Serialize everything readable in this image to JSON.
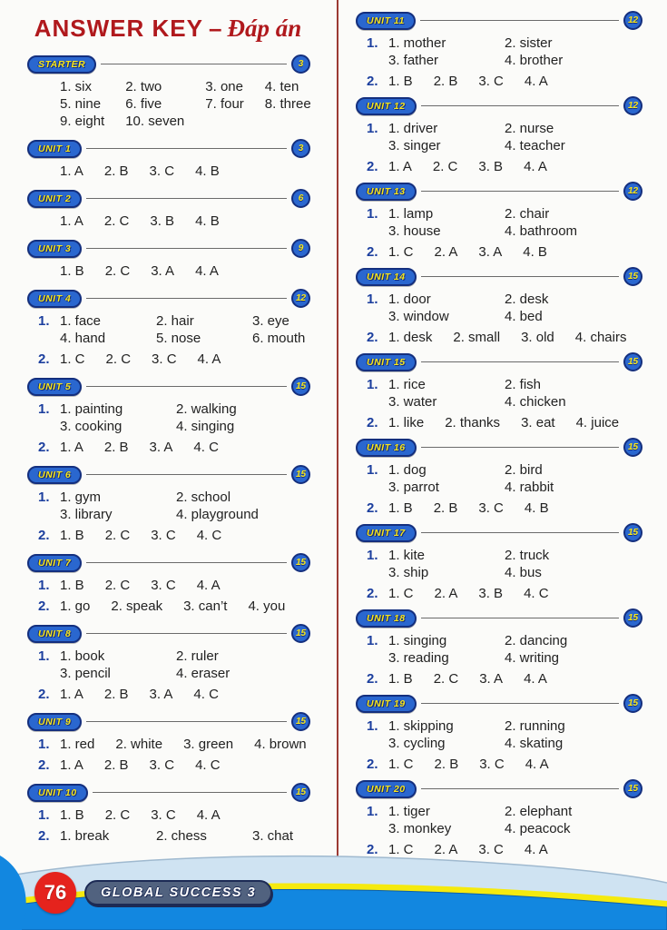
{
  "title": {
    "main": "ANSWER KEY",
    "dash": "–",
    "sub": "Đáp án"
  },
  "units_left": [
    {
      "label": "STARTER",
      "page": "3",
      "sections": [
        {
          "label": "",
          "cols": 4,
          "cells": [
            "1. six",
            "2. two",
            "3. one",
            "4. ten",
            "5. nine",
            "6. five",
            "7. four",
            "8. three",
            "9. eight",
            "10. seven"
          ]
        }
      ]
    },
    {
      "label": "UNIT 1",
      "page": "3",
      "sections": [
        {
          "label": "",
          "cols": 4,
          "cells": [
            "1. A",
            "2. B",
            "3. C",
            "4. B"
          ]
        }
      ]
    },
    {
      "label": "UNIT 2",
      "page": "6",
      "sections": [
        {
          "label": "",
          "cols": 4,
          "cells": [
            "1. A",
            "2. C",
            "3. B",
            "4. B"
          ]
        }
      ]
    },
    {
      "label": "UNIT 3",
      "page": "9",
      "sections": [
        {
          "label": "",
          "cols": 4,
          "cells": [
            "1. B",
            "2. C",
            "3. A",
            "4. A"
          ]
        }
      ]
    },
    {
      "label": "UNIT 4",
      "page": "12",
      "sections": [
        {
          "label": "1.",
          "cols": 3,
          "cells": [
            "1. face",
            "2. hair",
            "3. eye",
            "4. hand",
            "5. nose",
            "6. mouth"
          ]
        },
        {
          "label": "2.",
          "cols": 4,
          "cells": [
            "1. C",
            "2. C",
            "3. C",
            "4. A"
          ]
        }
      ]
    },
    {
      "label": "UNIT 5",
      "page": "15",
      "sections": [
        {
          "label": "1.",
          "cols": 2,
          "cells": [
            "1. painting",
            "2. walking",
            "3. cooking",
            "4. singing"
          ]
        },
        {
          "label": "2.",
          "cols": 4,
          "cells": [
            "1. A",
            "2. B",
            "3. A",
            "4. C"
          ]
        }
      ]
    },
    {
      "label": "UNIT 6",
      "page": "15",
      "sections": [
        {
          "label": "1.",
          "cols": 2,
          "cells": [
            "1. gym",
            "2. school",
            "3. library",
            "4. playground"
          ]
        },
        {
          "label": "2.",
          "cols": 4,
          "cells": [
            "1. B",
            "2. C",
            "3. C",
            "4. C"
          ]
        }
      ]
    },
    {
      "label": "UNIT 7",
      "page": "15",
      "sections": [
        {
          "label": "1.",
          "cols": 4,
          "cells": [
            "1. B",
            "2. C",
            "3. C",
            "4. A"
          ]
        },
        {
          "label": "2.",
          "cols": 4,
          "cells": [
            "1. go",
            "2. speak",
            "3. can’t",
            "4. you"
          ]
        }
      ]
    },
    {
      "label": "UNIT 8",
      "page": "15",
      "sections": [
        {
          "label": "1.",
          "cols": 2,
          "cells": [
            "1. book",
            "2. ruler",
            "3. pencil",
            "4. eraser"
          ]
        },
        {
          "label": "2.",
          "cols": 4,
          "cells": [
            "1. A",
            "2. B",
            "3. A",
            "4. C"
          ]
        }
      ]
    },
    {
      "label": "UNIT 9",
      "page": "15",
      "sections": [
        {
          "label": "1.",
          "cols": 4,
          "cells": [
            "1. red",
            "2. white",
            "3. green",
            "4. brown"
          ]
        },
        {
          "label": "2.",
          "cols": 4,
          "cells": [
            "1. A",
            "2. B",
            "3. C",
            "4. C"
          ]
        }
      ]
    },
    {
      "label": "UNIT 10",
      "page": "15",
      "sections": [
        {
          "label": "1.",
          "cols": 4,
          "cells": [
            "1. B",
            "2. C",
            "3. C",
            "4. A"
          ]
        },
        {
          "label": "2.",
          "cols": 3,
          "cells": [
            "1. break",
            "2. chess",
            "3. chat"
          ]
        }
      ]
    }
  ],
  "units_right": [
    {
      "label": "UNIT 11",
      "page": "12",
      "sections": [
        {
          "label": "1.",
          "cols": 2,
          "cells": [
            "1. mother",
            "2. sister",
            "3. father",
            "4. brother"
          ]
        },
        {
          "label": "2.",
          "cols": 4,
          "cells": [
            "1. B",
            "2. B",
            "3. C",
            "4. A"
          ]
        }
      ]
    },
    {
      "label": "UNIT 12",
      "page": "12",
      "sections": [
        {
          "label": "1.",
          "cols": 2,
          "cells": [
            "1. driver",
            "2. nurse",
            "3. singer",
            "4. teacher"
          ]
        },
        {
          "label": "2.",
          "cols": 4,
          "cells": [
            "1. A",
            "2. C",
            "3. B",
            "4. A"
          ]
        }
      ]
    },
    {
      "label": "UNIT 13",
      "page": "12",
      "sections": [
        {
          "label": "1.",
          "cols": 2,
          "cells": [
            "1. lamp",
            "2. chair",
            "3. house",
            "4. bathroom"
          ]
        },
        {
          "label": "2.",
          "cols": 4,
          "cells": [
            "1. C",
            "2. A",
            "3. A",
            "4. B"
          ]
        }
      ]
    },
    {
      "label": "UNIT 14",
      "page": "15",
      "sections": [
        {
          "label": "1.",
          "cols": 2,
          "cells": [
            "1. door",
            "2. desk",
            "3. window",
            "4. bed"
          ]
        },
        {
          "label": "2.",
          "cols": 4,
          "cells": [
            "1. desk",
            "2. small",
            "3. old",
            "4. chairs"
          ]
        }
      ]
    },
    {
      "label": "UNIT 15",
      "page": "15",
      "sections": [
        {
          "label": "1.",
          "cols": 2,
          "cells": [
            "1. rice",
            "2. fish",
            "3. water",
            "4. chicken"
          ]
        },
        {
          "label": "2.",
          "cols": 4,
          "cells": [
            "1. like",
            "2. thanks",
            "3. eat",
            "4. juice"
          ]
        }
      ]
    },
    {
      "label": "UNIT 16",
      "page": "15",
      "sections": [
        {
          "label": "1.",
          "cols": 2,
          "cells": [
            "1. dog",
            "2. bird",
            "3. parrot",
            "4. rabbit"
          ]
        },
        {
          "label": "2.",
          "cols": 4,
          "cells": [
            "1. B",
            "2. B",
            "3. C",
            "4. B"
          ]
        }
      ]
    },
    {
      "label": "UNIT 17",
      "page": "15",
      "sections": [
        {
          "label": "1.",
          "cols": 2,
          "cells": [
            "1. kite",
            "2. truck",
            "3. ship",
            "4. bus"
          ]
        },
        {
          "label": "2.",
          "cols": 4,
          "cells": [
            "1. C",
            "2. A",
            "3. B",
            "4. C"
          ]
        }
      ]
    },
    {
      "label": "UNIT 18",
      "page": "15",
      "sections": [
        {
          "label": "1.",
          "cols": 2,
          "cells": [
            "1. singing",
            "2. dancing",
            "3. reading",
            "4. writing"
          ]
        },
        {
          "label": "2.",
          "cols": 4,
          "cells": [
            "1. B",
            "2. C",
            "3. A",
            "4. A"
          ]
        }
      ]
    },
    {
      "label": "UNIT 19",
      "page": "15",
      "sections": [
        {
          "label": "1.",
          "cols": 2,
          "cells": [
            "1. skipping",
            "2. running",
            "3. cycling",
            "4. skating"
          ]
        },
        {
          "label": "2.",
          "cols": 4,
          "cells": [
            "1. C",
            "2. B",
            "3. C",
            "4. A"
          ]
        }
      ]
    },
    {
      "label": "UNIT 20",
      "page": "15",
      "sections": [
        {
          "label": "1.",
          "cols": 2,
          "cells": [
            "1. tiger",
            "2. elephant",
            "3. monkey",
            "4. peacock"
          ]
        },
        {
          "label": "2.",
          "cols": 4,
          "cells": [
            "1. C",
            "2. A",
            "3. C",
            "4. A"
          ]
        }
      ]
    }
  ],
  "footer": {
    "page_number": "76",
    "book_title": "GLOBAL SUCCESS 3"
  },
  "colors": {
    "title_red": "#b0191d",
    "badge_blue": "#2a67cf",
    "badge_border": "#142f7e",
    "badge_yellow": "#f8e71c",
    "label_blue": "#1c3f9e",
    "divider_red": "#9c3a33",
    "footer_blue": "#1287e0",
    "footer_lightblue": "#cfe3f2",
    "footer_yellow": "#f5ea0e",
    "circle_red": "#e5231d",
    "banner_slate": "#51627f"
  }
}
